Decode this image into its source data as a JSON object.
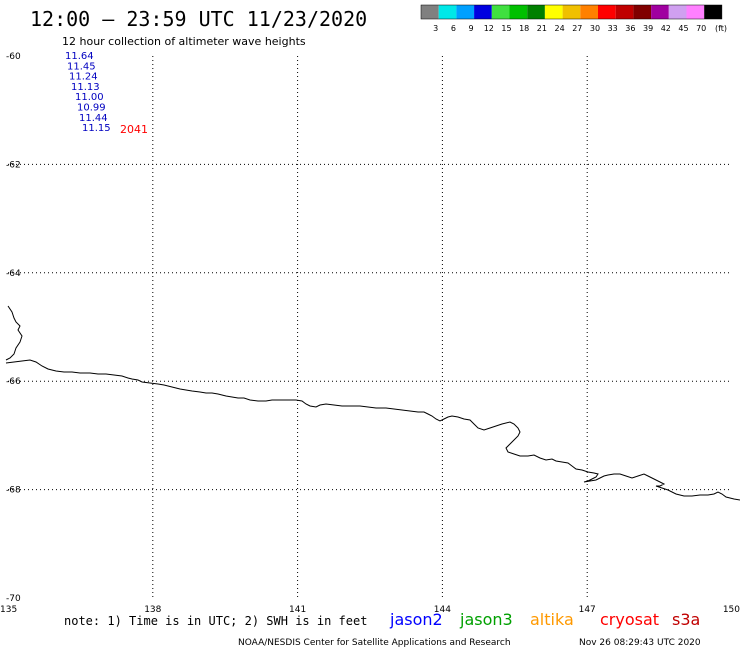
{
  "header": {
    "title": "12:00 – 23:59 UTC 11/23/2020",
    "subtitle": "12 hour collection of altimeter wave heights"
  },
  "color_scale": {
    "unit": "(ft)",
    "bins": [
      {
        "label": "3",
        "color": "#808080"
      },
      {
        "label": "6",
        "color": "#00e8e8"
      },
      {
        "label": "9",
        "color": "#00a0ff"
      },
      {
        "label": "12",
        "color": "#0000e0"
      },
      {
        "label": "15",
        "color": "#40e040"
      },
      {
        "label": "18",
        "color": "#00c000"
      },
      {
        "label": "21",
        "color": "#008000"
      },
      {
        "label": "24",
        "color": "#ffff00"
      },
      {
        "label": "27",
        "color": "#f0c000"
      },
      {
        "label": "30",
        "color": "#ff8000"
      },
      {
        "label": "33",
        "color": "#ff0000"
      },
      {
        "label": "36",
        "color": "#c00000"
      },
      {
        "label": "39",
        "color": "#800000"
      },
      {
        "label": "42",
        "color": "#a000a0"
      },
      {
        "label": "45",
        "color": "#d0a0f0"
      },
      {
        "label": "70",
        "color": "#ff80ff"
      },
      {
        "label": "",
        "color": "#000000"
      }
    ]
  },
  "map": {
    "lat_labels": [
      "-60",
      "-62",
      "-64",
      "-66",
      "-68",
      "-70"
    ],
    "lon_labels": [
      "135",
      "138",
      "141",
      "144",
      "147",
      "150"
    ],
    "lat_range": [
      -70,
      -60
    ],
    "lon_range": [
      135,
      150
    ]
  },
  "observations": {
    "color": "#0000c0",
    "values": [
      "11.64",
      "11.45",
      "11.24",
      "11.13",
      "11.00",
      "10.99",
      "11.44",
      "11.15"
    ],
    "time_label": "2041",
    "time_color": "#ff0000"
  },
  "footer": {
    "note": "note: 1) Time is in UTC; 2) SWH is in feet",
    "satellites": [
      {
        "name": "jason2",
        "color": "#0000ff"
      },
      {
        "name": "jason3",
        "color": "#00a000"
      },
      {
        "name": "altika",
        "color": "#ff9900"
      },
      {
        "name": "cryosat",
        "color": "#ff0000"
      },
      {
        "name": "s3a",
        "color": "#c00000"
      }
    ],
    "credit": "NOAA/NESDIS Center for Satellite Applications and Research",
    "timestamp": "Nov 26 08:29:43 UTC 2020"
  }
}
